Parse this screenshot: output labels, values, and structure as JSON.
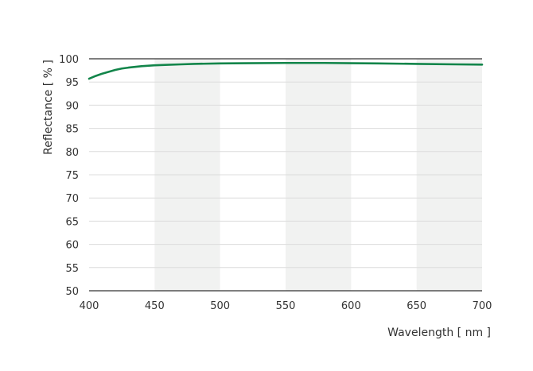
{
  "chart_data": {
    "type": "line",
    "xlabel": "Wavelength [ nm ]",
    "ylabel": "Reflectance [ % ]",
    "xlim": [
      400,
      700
    ],
    "ylim": [
      50,
      100
    ],
    "x_ticks": [
      "400",
      "450",
      "500",
      "550",
      "600",
      "650",
      "700"
    ],
    "y_ticks": [
      "50",
      "55",
      "60",
      "65",
      "70",
      "75",
      "80",
      "85",
      "90",
      "95",
      "100"
    ],
    "shaded_bands": [
      [
        450,
        500
      ],
      [
        550,
        600
      ],
      [
        650,
        700
      ]
    ],
    "grid": true,
    "series": [
      {
        "color": "#12854a",
        "x": [
          400,
          405,
          410,
          415,
          420,
          425,
          430,
          440,
          450,
          460,
          470,
          480,
          500,
          520,
          550,
          580,
          600,
          620,
          650,
          680,
          700
        ],
        "y": [
          95.7,
          96.3,
          96.8,
          97.2,
          97.6,
          97.9,
          98.1,
          98.4,
          98.6,
          98.7,
          98.8,
          98.9,
          99.0,
          99.05,
          99.1,
          99.1,
          99.05,
          99.0,
          98.9,
          98.8,
          98.75
        ]
      }
    ]
  }
}
